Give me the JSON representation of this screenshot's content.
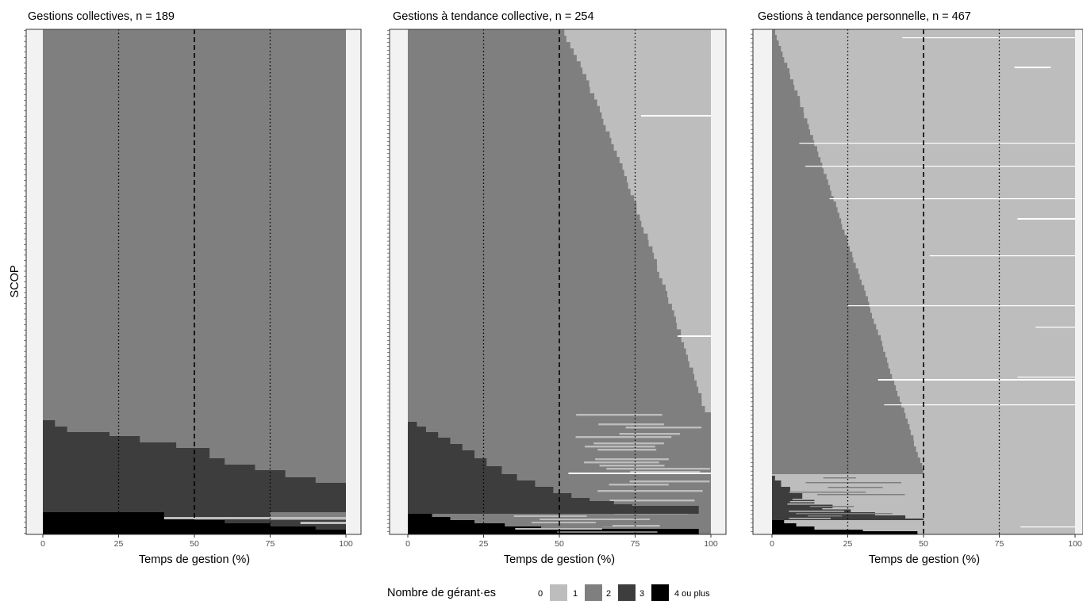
{
  "figure": {
    "ylabel": "SCOP",
    "legend": {
      "title": "Nombre de gérant·es",
      "position": "bottom",
      "items": [
        {
          "label": "0",
          "color": "#ffffff"
        },
        {
          "label": "1",
          "color": "#bdbdbd"
        },
        {
          "label": "2",
          "color": "#7f7f7f"
        },
        {
          "label": "3",
          "color": "#3d3d3d"
        },
        {
          "label": "4 ou plus",
          "color": "#000000"
        }
      ]
    }
  },
  "chart_data": [
    {
      "type": "bar",
      "orientation": "horizontal stacked (sequence per SCOP)",
      "title": "Gestions collectives, n = 189",
      "xlabel": "Temps de gestion (%)",
      "ylabel": "SCOP",
      "n": 189,
      "xlim": [
        0,
        100
      ],
      "xticks": [
        "0",
        "25",
        "50",
        "75",
        "100"
      ],
      "reference_lines": [
        {
          "x": 25,
          "style": "dotted"
        },
        {
          "x": 50,
          "style": "dashed"
        },
        {
          "x": 75,
          "style": "dotted"
        }
      ],
      "grid": false,
      "row_profile": [
        {
          "rows_from_bottom": [
            0,
            10
          ],
          "segments": [
            {
              "value": "4 ou plus",
              "to_pct": 40
            },
            {
              "value": "3",
              "to_pct": 75
            },
            {
              "value": "2",
              "to_pct": 100
            }
          ]
        },
        {
          "rows_from_bottom": [
            10,
            55
          ],
          "segments": [
            {
              "value": "3",
              "to_pct": 100
            }
          ]
        },
        {
          "rows_from_bottom": [
            55,
            189
          ],
          "segments": [
            {
              "value": "2",
              "to_pct": 100
            }
          ]
        }
      ],
      "levels_pct_of_rows": {
        "4 ou plus": 4,
        "3": 19,
        "2": 77
      }
    },
    {
      "type": "bar",
      "orientation": "horizontal stacked (sequence per SCOP)",
      "title": "Gestions à tendance collective, n = 254",
      "xlabel": "Temps de gestion (%)",
      "ylabel": "SCOP",
      "n": 254,
      "xlim": [
        0,
        100
      ],
      "xticks": [
        "0",
        "25",
        "50",
        "75",
        "100"
      ],
      "reference_lines": [
        {
          "x": 25,
          "style": "dotted"
        },
        {
          "x": 50,
          "style": "dashed"
        },
        {
          "x": 75,
          "style": "dotted"
        }
      ],
      "grid": false,
      "transition_2_to_1_pct_top_to_bottom": {
        "from": 50,
        "to": 98
      },
      "levels_pct_of_rows": {
        "4 ou plus": 4,
        "3": 21,
        "2": 75
      }
    },
    {
      "type": "bar",
      "orientation": "horizontal stacked (sequence per SCOP)",
      "title": "Gestions à tendance personnelle, n = 467",
      "xlabel": "Temps de gestion (%)",
      "ylabel": "SCOP",
      "n": 467,
      "xlim": [
        0,
        100
      ],
      "xticks": [
        "0",
        "25",
        "50",
        "75",
        "100"
      ],
      "reference_lines": [
        {
          "x": 25,
          "style": "dotted"
        },
        {
          "x": 50,
          "style": "dashed"
        },
        {
          "x": 75,
          "style": "dotted"
        }
      ],
      "grid": false,
      "transition_2_to_1_pct_top_to_bottom": {
        "from": 0,
        "to": 50
      },
      "levels_pct_of_rows": {
        "4 ou plus": 3,
        "3": 9,
        "2": 88
      }
    }
  ]
}
